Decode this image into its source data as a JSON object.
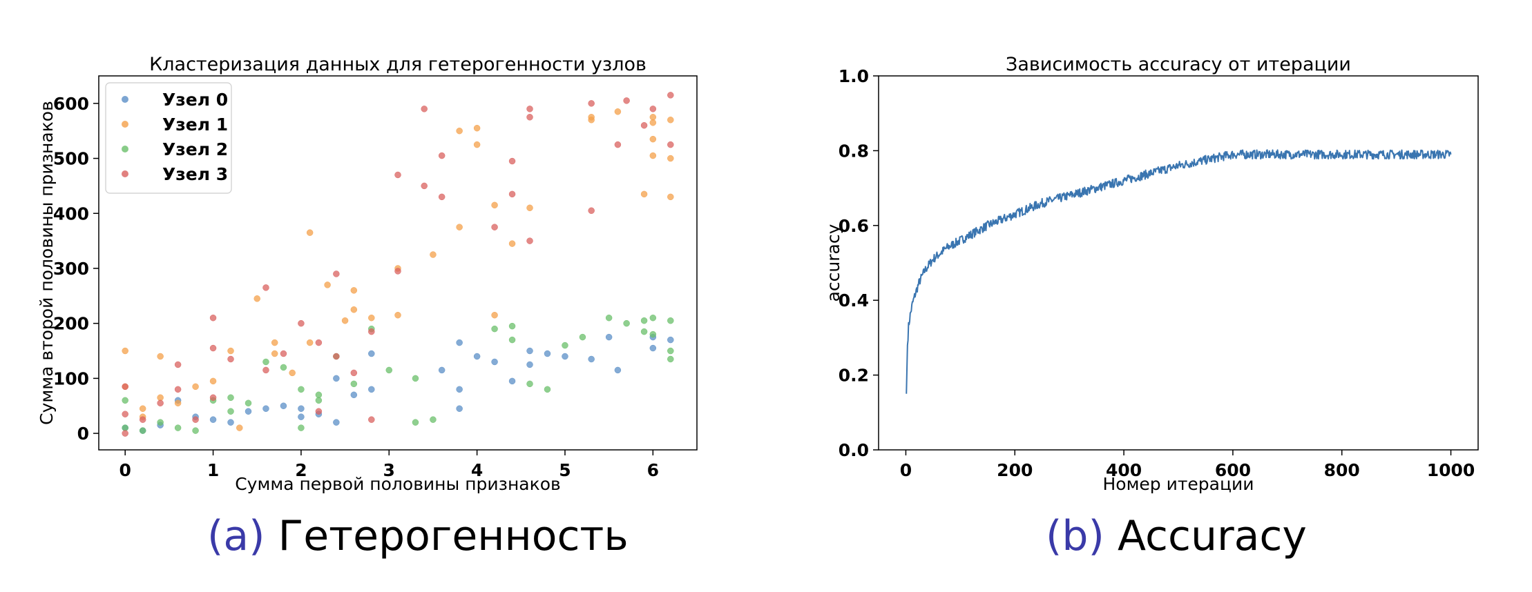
{
  "captions": {
    "a": {
      "tag": "(a)",
      "text": "Гетерогенность"
    },
    "b": {
      "tag": "(b)",
      "text": "Accuracy"
    }
  },
  "chart_data": [
    {
      "type": "scatter",
      "title": "Кластеризация данных для гетерогенности узлов",
      "xlabel": "Сумма первой половины признаков",
      "ylabel": "Сумма второй половины признаков",
      "xlim": [
        -0.3,
        6.5
      ],
      "ylim": [
        -30,
        650
      ],
      "xticks": [
        0,
        1,
        2,
        3,
        4,
        5,
        6
      ],
      "yticks": [
        0,
        100,
        200,
        300,
        400,
        500,
        600
      ],
      "legend_position": "upper-left",
      "grid": false,
      "series": [
        {
          "name": "Узел 0",
          "color": "#5b8fc7",
          "points": [
            [
              0,
              10
            ],
            [
              0.2,
              5
            ],
            [
              0.4,
              15
            ],
            [
              0.6,
              60
            ],
            [
              0.8,
              30
            ],
            [
              1,
              25
            ],
            [
              1.2,
              20
            ],
            [
              1.4,
              40
            ],
            [
              1.6,
              45
            ],
            [
              1.8,
              50
            ],
            [
              2,
              30
            ],
            [
              2,
              45
            ],
            [
              2.2,
              35
            ],
            [
              2.4,
              100
            ],
            [
              2.4,
              20
            ],
            [
              2.6,
              70
            ],
            [
              2.8,
              145
            ],
            [
              2.8,
              80
            ],
            [
              3.6,
              115
            ],
            [
              3.8,
              80
            ],
            [
              3.8,
              45
            ],
            [
              3.8,
              165
            ],
            [
              4,
              140
            ],
            [
              4.2,
              130
            ],
            [
              4.4,
              95
            ],
            [
              4.6,
              125
            ],
            [
              4.6,
              150
            ],
            [
              4.8,
              145
            ],
            [
              5,
              140
            ],
            [
              5.3,
              135
            ],
            [
              5.5,
              175
            ],
            [
              5.6,
              115
            ],
            [
              6,
              155
            ],
            [
              6,
              175
            ],
            [
              6.2,
              170
            ]
          ]
        },
        {
          "name": "Узел 1",
          "color": "#f4a04a",
          "points": [
            [
              0,
              150
            ],
            [
              0,
              85
            ],
            [
              0.2,
              45
            ],
            [
              0.2,
              30
            ],
            [
              0.4,
              140
            ],
            [
              0.4,
              65
            ],
            [
              0.6,
              55
            ],
            [
              0.8,
              85
            ],
            [
              1,
              95
            ],
            [
              1.2,
              150
            ],
            [
              1.3,
              10
            ],
            [
              1.5,
              245
            ],
            [
              1.7,
              165
            ],
            [
              1.7,
              145
            ],
            [
              1.9,
              110
            ],
            [
              2.1,
              365
            ],
            [
              2.1,
              165
            ],
            [
              2.3,
              270
            ],
            [
              2.5,
              205
            ],
            [
              2.6,
              260
            ],
            [
              2.6,
              225
            ],
            [
              2.8,
              210
            ],
            [
              3.1,
              300
            ],
            [
              3.1,
              215
            ],
            [
              3.5,
              325
            ],
            [
              3.8,
              375
            ],
            [
              3.8,
              550
            ],
            [
              4,
              555
            ],
            [
              4,
              525
            ],
            [
              4.2,
              415
            ],
            [
              4.2,
              215
            ],
            [
              4.4,
              345
            ],
            [
              4.6,
              410
            ],
            [
              5.3,
              575
            ],
            [
              5.3,
              570
            ],
            [
              5.6,
              585
            ],
            [
              5.9,
              435
            ],
            [
              6,
              575
            ],
            [
              6,
              535
            ],
            [
              6,
              565
            ],
            [
              6,
              505
            ],
            [
              6.2,
              500
            ],
            [
              6.2,
              570
            ],
            [
              6.2,
              430
            ]
          ]
        },
        {
          "name": "Узел 2",
          "color": "#6abf6a",
          "points": [
            [
              0,
              10
            ],
            [
              0,
              60
            ],
            [
              0.2,
              5
            ],
            [
              0.4,
              20
            ],
            [
              0.6,
              10
            ],
            [
              0.8,
              5
            ],
            [
              1,
              60
            ],
            [
              1.2,
              65
            ],
            [
              1.2,
              40
            ],
            [
              1.4,
              55
            ],
            [
              1.6,
              130
            ],
            [
              1.8,
              120
            ],
            [
              2,
              80
            ],
            [
              2,
              10
            ],
            [
              2.2,
              70
            ],
            [
              2.2,
              60
            ],
            [
              2.4,
              140
            ],
            [
              2.6,
              90
            ],
            [
              2.8,
              190
            ],
            [
              3,
              115
            ],
            [
              3.3,
              100
            ],
            [
              3.3,
              20
            ],
            [
              3.5,
              25
            ],
            [
              4.2,
              190
            ],
            [
              4.4,
              195
            ],
            [
              4.4,
              170
            ],
            [
              4.6,
              90
            ],
            [
              4.8,
              80
            ],
            [
              5,
              160
            ],
            [
              5.2,
              175
            ],
            [
              5.5,
              210
            ],
            [
              5.7,
              200
            ],
            [
              5.9,
              185
            ],
            [
              5.9,
              205
            ],
            [
              6,
              210
            ],
            [
              6,
              180
            ],
            [
              6.2,
              205
            ],
            [
              6.2,
              150
            ],
            [
              6.2,
              135
            ]
          ]
        },
        {
          "name": "Узел 3",
          "color": "#d9625f",
          "points": [
            [
              0,
              85
            ],
            [
              0,
              35
            ],
            [
              0,
              0
            ],
            [
              0.2,
              25
            ],
            [
              0.4,
              55
            ],
            [
              0.6,
              125
            ],
            [
              0.6,
              80
            ],
            [
              0.8,
              25
            ],
            [
              1,
              210
            ],
            [
              1,
              155
            ],
            [
              1,
              65
            ],
            [
              1.2,
              135
            ],
            [
              1.6,
              265
            ],
            [
              1.6,
              115
            ],
            [
              1.8,
              145
            ],
            [
              2,
              200
            ],
            [
              2.2,
              165
            ],
            [
              2.2,
              40
            ],
            [
              2.4,
              290
            ],
            [
              2.4,
              140
            ],
            [
              2.6,
              110
            ],
            [
              2.8,
              185
            ],
            [
              2.8,
              25
            ],
            [
              3.1,
              470
            ],
            [
              3.1,
              295
            ],
            [
              3.4,
              590
            ],
            [
              3.4,
              450
            ],
            [
              3.6,
              505
            ],
            [
              3.6,
              430
            ],
            [
              4.2,
              375
            ],
            [
              4.4,
              435
            ],
            [
              4.4,
              495
            ],
            [
              4.6,
              590
            ],
            [
              4.6,
              575
            ],
            [
              4.6,
              350
            ],
            [
              5.3,
              600
            ],
            [
              5.3,
              405
            ],
            [
              5.6,
              525
            ],
            [
              5.7,
              605
            ],
            [
              5.9,
              560
            ],
            [
              6,
              590
            ],
            [
              6.2,
              615
            ],
            [
              6.2,
              525
            ]
          ]
        }
      ]
    },
    {
      "type": "line",
      "title": "Зависимость accuracy от итерации",
      "xlabel": "Номер итерации",
      "ylabel": "accuracy",
      "xlim": [
        -50,
        1050
      ],
      "ylim": [
        0.0,
        1.0
      ],
      "xticks": [
        0,
        200,
        400,
        600,
        800,
        1000
      ],
      "yticks": [
        "0.0",
        "0.2",
        "0.4",
        "0.6",
        "0.8",
        "1.0"
      ],
      "grid": false,
      "series": [
        {
          "color": "#3a75b0",
          "x": [
            1,
            3,
            5,
            8,
            12,
            18,
            25,
            35,
            50,
            75,
            100,
            150,
            200,
            250,
            300,
            350,
            400,
            450,
            500,
            550,
            600,
            650,
            700,
            750,
            800,
            850,
            900,
            950,
            1000
          ],
          "y": [
            0.15,
            0.28,
            0.33,
            0.36,
            0.39,
            0.42,
            0.45,
            0.48,
            0.51,
            0.54,
            0.56,
            0.6,
            0.63,
            0.66,
            0.68,
            0.7,
            0.72,
            0.74,
            0.76,
            0.775,
            0.79,
            0.79,
            0.79,
            0.79,
            0.79,
            0.79,
            0.79,
            0.79,
            0.79
          ],
          "noise": 0.012
        }
      ]
    }
  ]
}
